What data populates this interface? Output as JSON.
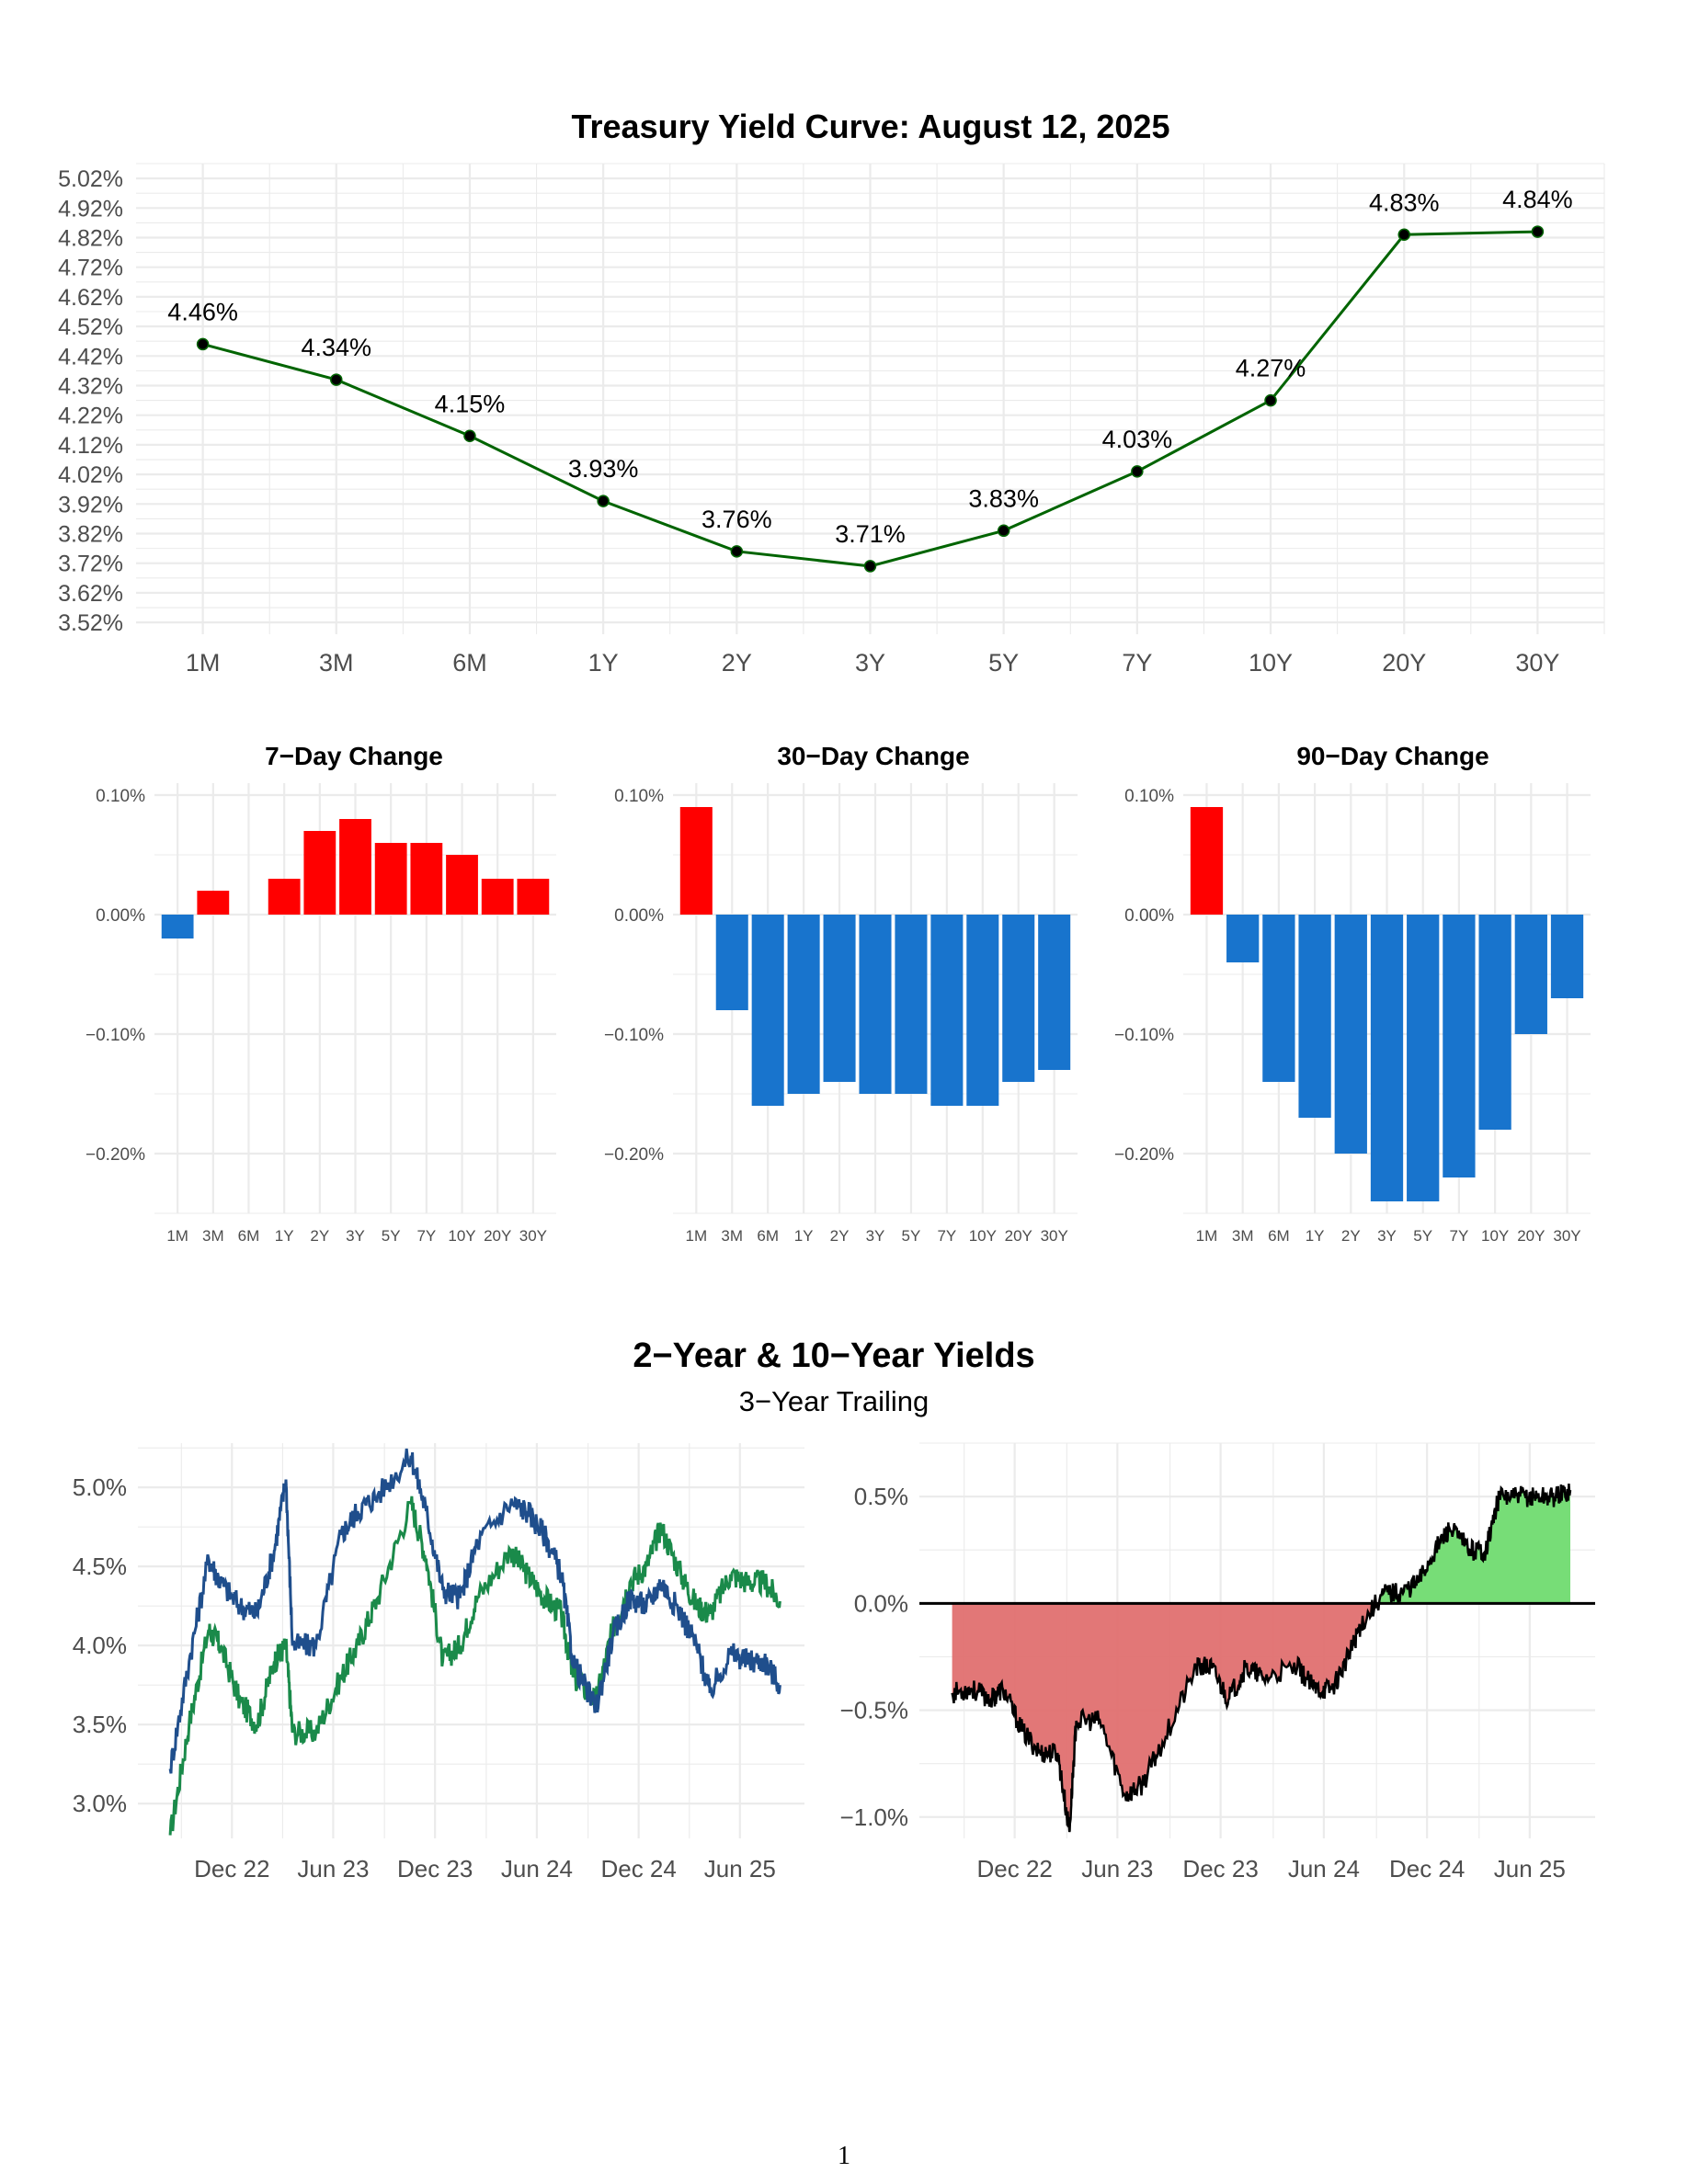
{
  "chart_data": [
    {
      "type": "line",
      "title": "Treasury Yield Curve: August 12, 2025",
      "categories": [
        "1M",
        "3M",
        "6M",
        "1Y",
        "2Y",
        "3Y",
        "5Y",
        "7Y",
        "10Y",
        "20Y",
        "30Y"
      ],
      "values": [
        4.46,
        4.34,
        4.15,
        3.93,
        3.76,
        3.71,
        3.83,
        4.03,
        4.27,
        4.83,
        4.84
      ],
      "data_labels": [
        "4.46%",
        "4.34%",
        "4.15%",
        "3.93%",
        "3.76%",
        "3.71%",
        "3.83%",
        "4.03%",
        "4.27%",
        "4.83%",
        "4.84%"
      ],
      "yticks": [
        "3.52%",
        "3.62%",
        "3.72%",
        "3.82%",
        "3.92%",
        "4.02%",
        "4.12%",
        "4.22%",
        "4.32%",
        "4.42%",
        "4.52%",
        "4.62%",
        "4.72%",
        "4.82%",
        "4.92%",
        "5.02%"
      ],
      "ylim": [
        3.48,
        5.07
      ],
      "line_color": "#006400",
      "grid": true
    },
    {
      "type": "bar",
      "title": "7−Day Change",
      "categories": [
        "1M",
        "3M",
        "6M",
        "1Y",
        "2Y",
        "3Y",
        "5Y",
        "7Y",
        "10Y",
        "20Y",
        "30Y"
      ],
      "values": [
        -0.02,
        0.02,
        0.0,
        0.03,
        0.07,
        0.08,
        0.06,
        0.06,
        0.05,
        0.03,
        0.03
      ],
      "yticks": [
        "−0.20%",
        "−0.10%",
        "0.00%",
        "0.10%"
      ],
      "ylim": [
        -0.25,
        0.11
      ],
      "positive_color": "#ff0000",
      "negative_color": "#1874cd"
    },
    {
      "type": "bar",
      "title": "30−Day Change",
      "categories": [
        "1M",
        "3M",
        "6M",
        "1Y",
        "2Y",
        "3Y",
        "5Y",
        "7Y",
        "10Y",
        "20Y",
        "30Y"
      ],
      "values": [
        0.09,
        -0.08,
        -0.16,
        -0.15,
        -0.14,
        -0.15,
        -0.15,
        -0.16,
        -0.16,
        -0.14,
        -0.13
      ],
      "yticks": [
        "−0.20%",
        "−0.10%",
        "0.00%",
        "0.10%"
      ],
      "ylim": [
        -0.25,
        0.11
      ],
      "positive_color": "#ff0000",
      "negative_color": "#1874cd"
    },
    {
      "type": "bar",
      "title": "90−Day Change",
      "categories": [
        "1M",
        "3M",
        "6M",
        "1Y",
        "2Y",
        "3Y",
        "5Y",
        "7Y",
        "10Y",
        "20Y",
        "30Y"
      ],
      "values": [
        0.09,
        -0.04,
        -0.14,
        -0.17,
        -0.2,
        -0.24,
        -0.24,
        -0.22,
        -0.18,
        -0.1,
        -0.07
      ],
      "yticks": [
        "−0.20%",
        "−0.10%",
        "0.00%",
        "0.10%"
      ],
      "ylim": [
        -0.25,
        0.11
      ],
      "positive_color": "#ff0000",
      "negative_color": "#1874cd"
    },
    {
      "type": "line",
      "title": "2−Year & 10−Year Yields",
      "subtitle": "3−Year Trailing",
      "x": [
        "2022-08-12",
        "2022-09-15",
        "2022-10-20",
        "2022-11-10",
        "2022-12-15",
        "2023-01-15",
        "2023-02-15",
        "2023-03-08",
        "2023-03-20",
        "2023-05-01",
        "2023-06-15",
        "2023-07-15",
        "2023-08-20",
        "2023-10-19",
        "2023-11-15",
        "2023-12-15",
        "2024-01-15",
        "2024-02-15",
        "2024-04-15",
        "2024-05-15",
        "2024-06-15",
        "2024-07-15",
        "2024-08-05",
        "2024-09-15",
        "2024-10-15",
        "2024-11-15",
        "2024-12-15",
        "2025-01-10",
        "2025-02-15",
        "2025-03-15",
        "2025-04-08",
        "2025-05-15",
        "2025-06-15",
        "2025-07-15",
        "2025-08-12"
      ],
      "series": [
        {
          "values": [
            3.22,
            3.9,
            4.55,
            4.4,
            4.25,
            4.2,
            4.6,
            5.05,
            4.0,
            4.0,
            4.7,
            4.85,
            4.95,
            5.2,
            4.85,
            4.35,
            4.3,
            4.65,
            4.9,
            4.85,
            4.7,
            4.45,
            3.9,
            3.6,
            4.05,
            4.3,
            4.25,
            4.4,
            4.2,
            4.0,
            3.7,
            3.95,
            3.9,
            3.9,
            3.75
          ],
          "color": "#1f4e8c"
        },
        {
          "values": [
            2.8,
            3.5,
            4.1,
            4.0,
            3.65,
            3.5,
            3.9,
            4.0,
            3.45,
            3.45,
            3.8,
            4.0,
            4.3,
            4.9,
            4.55,
            3.9,
            4.0,
            4.3,
            4.6,
            4.45,
            4.3,
            4.2,
            3.8,
            3.65,
            4.1,
            4.4,
            4.5,
            4.75,
            4.45,
            4.25,
            4.2,
            4.45,
            4.4,
            4.4,
            4.28
          ],
          "color": "#1a8a4a"
        }
      ],
      "yticks": [
        "3.0%",
        "3.5%",
        "4.0%",
        "4.5%",
        "5.0%"
      ],
      "xticks": [
        "Dec 22",
        "Jun 23",
        "Dec 23",
        "Jun 24",
        "Dec 24",
        "Jun 25"
      ],
      "ylim": [
        2.78,
        5.28
      ]
    },
    {
      "type": "area",
      "x": [
        "2022-08-12",
        "2022-09-15",
        "2022-10-20",
        "2022-11-10",
        "2022-12-15",
        "2023-01-15",
        "2023-02-15",
        "2023-03-08",
        "2023-03-20",
        "2023-05-01",
        "2023-06-15",
        "2023-07-15",
        "2023-08-20",
        "2023-10-19",
        "2023-11-15",
        "2023-12-15",
        "2024-01-15",
        "2024-02-15",
        "2024-04-15",
        "2024-05-15",
        "2024-06-15",
        "2024-07-15",
        "2024-08-05",
        "2024-09-15",
        "2024-10-15",
        "2024-11-15",
        "2024-12-15",
        "2025-01-10",
        "2025-02-15",
        "2025-03-15",
        "2025-04-08",
        "2025-05-15",
        "2025-06-15",
        "2025-07-15",
        "2025-08-12"
      ],
      "values": [
        -0.42,
        -0.4,
        -0.45,
        -0.4,
        -0.6,
        -0.7,
        -0.7,
        -1.07,
        -0.55,
        -0.55,
        -0.9,
        -0.85,
        -0.65,
        -0.3,
        -0.3,
        -0.45,
        -0.3,
        -0.35,
        -0.3,
        -0.4,
        -0.4,
        -0.25,
        -0.1,
        0.05,
        0.05,
        0.1,
        0.25,
        0.35,
        0.25,
        0.25,
        0.5,
        0.5,
        0.5,
        0.5,
        0.53
      ],
      "positive_color": "#77dd77",
      "negative_color": "#e07070",
      "yticks": [
        "−1.0%",
        "−0.5%",
        "0.0%",
        "0.5%"
      ],
      "xticks": [
        "Dec 22",
        "Jun 23",
        "Dec 23",
        "Jun 24",
        "Dec 24",
        "Jun 25"
      ],
      "ylim": [
        -1.1,
        0.75
      ]
    }
  ],
  "page": {
    "number": "1"
  }
}
